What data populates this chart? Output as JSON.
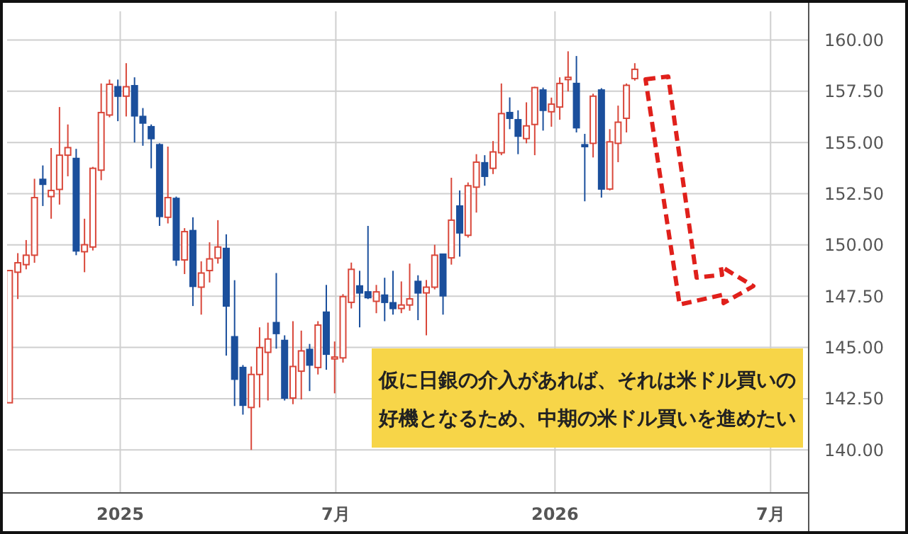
{
  "chart_data": {
    "type": "candlestick",
    "x": [
      "2024-09-30",
      "2024-10-07",
      "2024-10-14",
      "2024-10-21",
      "2024-10-28",
      "2024-11-04",
      "2024-11-11",
      "2024-11-18",
      "2024-11-25",
      "2024-12-02",
      "2024-12-09",
      "2024-12-16",
      "2024-12-23",
      "2024-12-30",
      "2025-01-06",
      "2025-01-13",
      "2025-01-20",
      "2025-01-27",
      "2025-02-03",
      "2025-02-10",
      "2025-02-17",
      "2025-02-24",
      "2025-03-03",
      "2025-03-10",
      "2025-03-17",
      "2025-03-24",
      "2025-03-31",
      "2025-04-07",
      "2025-04-14",
      "2025-04-21",
      "2025-04-28",
      "2025-05-05",
      "2025-05-12",
      "2025-05-19",
      "2025-05-26",
      "2025-06-02",
      "2025-06-09",
      "2025-06-16",
      "2025-06-23",
      "2025-06-30",
      "2025-07-07",
      "2025-07-14",
      "2025-07-21",
      "2025-07-28",
      "2025-08-04",
      "2025-08-11",
      "2025-08-18",
      "2025-08-25",
      "2025-09-01",
      "2025-09-08",
      "2025-09-15",
      "2025-09-22",
      "2025-09-29",
      "2025-10-06",
      "2025-10-13",
      "2025-10-20",
      "2025-10-27",
      "2025-11-03",
      "2025-11-10",
      "2025-11-17",
      "2025-11-24",
      "2025-12-01",
      "2025-12-08",
      "2025-12-15",
      "2025-12-22",
      "2025-12-29",
      "2026-01-05",
      "2026-01-12",
      "2026-01-19",
      "2026-01-26",
      "2026-02-02",
      "2026-02-09",
      "2026-02-16",
      "2026-02-23",
      "2026-03-02",
      "2026-03-09"
    ],
    "ohlc": [
      [
        142.3,
        148.75,
        142.3,
        148.75
      ],
      [
        148.67,
        149.6,
        147.36,
        149.13
      ],
      [
        149.04,
        150.24,
        148.81,
        149.5
      ],
      [
        149.5,
        153.23,
        149.13,
        152.31
      ],
      [
        153.2,
        153.88,
        151.9,
        152.96
      ],
      [
        152.36,
        154.73,
        151.28,
        152.66
      ],
      [
        152.71,
        156.73,
        151.97,
        154.38
      ],
      [
        154.38,
        155.88,
        153.35,
        154.75
      ],
      [
        154.22,
        154.69,
        149.5,
        149.71
      ],
      [
        149.67,
        151.28,
        148.67,
        150.01
      ],
      [
        149.9,
        153.81,
        149.73,
        153.74
      ],
      [
        153.65,
        157.88,
        153.16,
        156.46
      ],
      [
        156.34,
        158.07,
        156.23,
        157.84
      ],
      [
        157.72,
        158.07,
        156.04,
        157.26
      ],
      [
        157.26,
        158.87,
        156.27,
        157.72
      ],
      [
        157.77,
        158.18,
        155.0,
        156.3
      ],
      [
        156.27,
        156.68,
        154.84,
        155.95
      ],
      [
        155.77,
        155.88,
        153.74,
        155.19
      ],
      [
        154.89,
        154.96,
        150.93,
        151.39
      ],
      [
        151.35,
        154.8,
        151.05,
        152.31
      ],
      [
        152.27,
        152.36,
        148.98,
        149.27
      ],
      [
        149.27,
        150.82,
        148.58,
        150.65
      ],
      [
        150.7,
        151.35,
        147.02,
        147.98
      ],
      [
        147.94,
        149.2,
        146.6,
        148.63
      ],
      [
        148.75,
        150.13,
        148.17,
        149.32
      ],
      [
        149.36,
        151.21,
        149.09,
        149.9
      ],
      [
        149.83,
        150.52,
        144.6,
        147.02
      ],
      [
        145.52,
        148.28,
        142.14,
        143.45
      ],
      [
        144.02,
        144.14,
        141.72,
        142.18
      ],
      [
        142.07,
        144.07,
        140.0,
        143.68
      ],
      [
        143.68,
        145.98,
        142.07,
        144.99
      ],
      [
        144.76,
        146.21,
        142.41,
        145.41
      ],
      [
        146.21,
        148.63,
        144.94,
        145.68
      ],
      [
        145.34,
        145.59,
        142.41,
        142.53
      ],
      [
        142.53,
        146.28,
        142.23,
        144.07
      ],
      [
        143.84,
        145.82,
        142.46,
        144.83
      ],
      [
        144.9,
        145.17,
        142.87,
        144.14
      ],
      [
        144.02,
        146.28,
        143.68,
        146.09
      ],
      [
        146.72,
        148.05,
        143.91,
        144.67
      ],
      [
        144.44,
        145.29,
        142.76,
        144.53
      ],
      [
        144.49,
        147.6,
        144.26,
        147.48
      ],
      [
        147.2,
        149.14,
        146.9,
        148.81
      ],
      [
        148.0,
        148.74,
        145.98,
        147.66
      ],
      [
        147.71,
        150.93,
        147.36,
        147.43
      ],
      [
        147.25,
        148.05,
        146.67,
        147.71
      ],
      [
        147.55,
        148.4,
        146.28,
        147.2
      ],
      [
        147.18,
        148.74,
        146.6,
        146.9
      ],
      [
        146.9,
        148.22,
        146.67,
        147.07
      ],
      [
        147.07,
        149.09,
        146.79,
        147.37
      ],
      [
        148.22,
        148.52,
        146.33,
        147.66
      ],
      [
        147.66,
        148.29,
        145.59,
        147.94
      ],
      [
        147.94,
        150.01,
        147.83,
        149.5
      ],
      [
        149.55,
        149.55,
        146.6,
        147.52
      ],
      [
        149.37,
        153.28,
        149.04,
        151.21
      ],
      [
        151.9,
        152.66,
        149.43,
        150.59
      ],
      [
        150.47,
        153.05,
        150.36,
        152.89
      ],
      [
        152.82,
        154.43,
        151.58,
        154.04
      ],
      [
        154.01,
        154.38,
        152.89,
        153.35
      ],
      [
        153.74,
        155.07,
        153.46,
        154.54
      ],
      [
        154.5,
        157.88,
        154.38,
        156.41
      ],
      [
        156.46,
        157.2,
        155.65,
        156.18
      ],
      [
        156.11,
        156.57,
        154.43,
        155.31
      ],
      [
        155.19,
        156.96,
        154.96,
        155.81
      ],
      [
        155.88,
        157.72,
        154.38,
        157.68
      ],
      [
        157.56,
        157.68,
        155.58,
        156.57
      ],
      [
        156.5,
        157.19,
        155.77,
        156.87
      ],
      [
        156.73,
        158.18,
        156.11,
        157.88
      ],
      [
        158.07,
        159.45,
        157.49,
        158.18
      ],
      [
        157.88,
        159.22,
        155.49,
        155.72
      ],
      [
        154.89,
        155.42,
        152.13,
        154.8
      ],
      [
        154.96,
        157.38,
        154.27,
        157.26
      ],
      [
        157.56,
        157.65,
        152.31,
        152.73
      ],
      [
        152.73,
        155.65,
        152.66,
        155.03
      ],
      [
        154.96,
        156.8,
        154.04,
        155.99
      ],
      [
        156.18,
        157.88,
        155.49,
        157.79
      ],
      [
        158.12,
        158.87,
        158.02,
        158.57
      ]
    ],
    "colors": [
      "#d9473a",
      "#d9473a",
      "#d9473a",
      "#d9473a",
      "#1b4f9c",
      "#d9473a",
      "#d9473a",
      "#d9473a",
      "#1b4f9c",
      "#d9473a",
      "#d9473a",
      "#d9473a",
      "#d9473a",
      "#1b4f9c",
      "#d9473a",
      "#1b4f9c",
      "#1b4f9c",
      "#1b4f9c",
      "#1b4f9c",
      "#d9473a",
      "#1b4f9c",
      "#d9473a",
      "#1b4f9c",
      "#d9473a",
      "#d9473a",
      "#d9473a",
      "#1b4f9c",
      "#1b4f9c",
      "#1b4f9c",
      "#d9473a",
      "#d9473a",
      "#d9473a",
      "#1b4f9c",
      "#1b4f9c",
      "#d9473a",
      "#d9473a",
      "#1b4f9c",
      "#d9473a",
      "#1b4f9c",
      "#d9473a",
      "#d9473a",
      "#d9473a",
      "#1b4f9c",
      "#1b4f9c",
      "#d9473a",
      "#1b4f9c",
      "#1b4f9c",
      "#d9473a",
      "#d9473a",
      "#1b4f9c",
      "#d9473a",
      "#d9473a",
      "#1b4f9c",
      "#d9473a",
      "#1b4f9c",
      "#d9473a",
      "#d9473a",
      "#1b4f9c",
      "#d9473a",
      "#d9473a",
      "#1b4f9c",
      "#1b4f9c",
      "#d9473a",
      "#d9473a",
      "#1b4f9c",
      "#d9473a",
      "#d9473a",
      "#d9473a",
      "#1b4f9c",
      "#1b4f9c",
      "#d9473a",
      "#1b4f9c",
      "#d9473a",
      "#d9473a",
      "#d9473a",
      "#d9473a"
    ],
    "xlim": [
      "2024-09-28",
      "2026-08-02"
    ],
    "xticks": [
      {
        "value": "2025-01-01",
        "label": "2025"
      },
      {
        "value": "2025-07-01",
        "label": "7月"
      },
      {
        "value": "2026-01-01",
        "label": "2026"
      },
      {
        "value": "2026-07-01",
        "label": "7月"
      }
    ],
    "ylim": [
      137.9,
      161.4
    ],
    "yticks": [
      {
        "value": 140,
        "label": "140.00"
      },
      {
        "value": 142.5,
        "label": "142.50"
      },
      {
        "value": 145,
        "label": "145.00"
      },
      {
        "value": 147.5,
        "label": "147.50"
      },
      {
        "value": 150,
        "label": "150.00"
      },
      {
        "value": 152.5,
        "label": "152.50"
      },
      {
        "value": 155,
        "label": "155.00"
      },
      {
        "value": 157.5,
        "label": "157.50"
      },
      {
        "value": 160,
        "label": "160.00"
      }
    ],
    "grid": true,
    "annotations": [
      "仮に日銀の介入があれば、それは米ドル買いの好機となるため、中期の米ドル買いを進めたい"
    ]
  }
}
